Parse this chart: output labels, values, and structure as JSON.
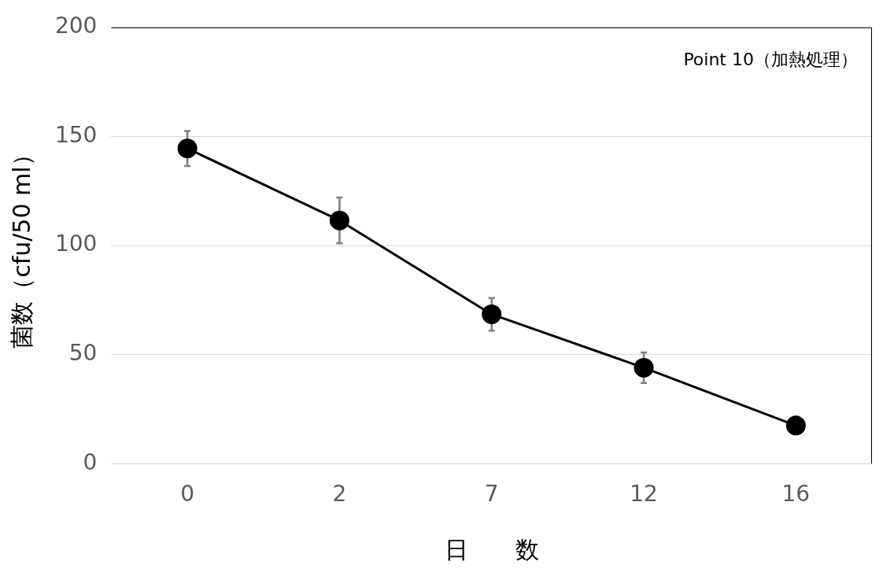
{
  "chart_data": {
    "type": "line",
    "xlabel": "日　　数",
    "ylabel": "菌数（cfu/50 ml）",
    "annotations": [
      "Point 10（加熱処理）"
    ],
    "categories": [
      "0",
      "2",
      "7",
      "12",
      "16"
    ],
    "series": [
      {
        "color": "#000000",
        "values": [
          144.5,
          111.5,
          68.5,
          44,
          17.5
        ],
        "errors": [
          8,
          10.5,
          7.5,
          7,
          4
        ]
      }
    ],
    "ylim": [
      0,
      200
    ],
    "yticks": [
      0,
      50,
      100,
      150,
      200
    ],
    "grid": "y",
    "legend": false,
    "marker": "circle",
    "line_style": "solid"
  }
}
